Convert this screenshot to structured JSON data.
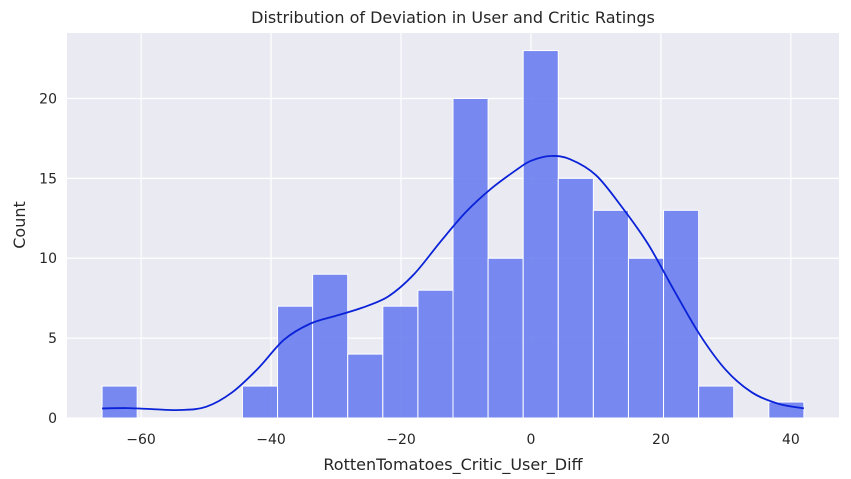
{
  "chart_data": {
    "type": "bar",
    "title": "Distribution of Deviation in User and Critic Ratings",
    "xlabel": "RottenTomatoes_Critic_User_Diff",
    "ylabel": "Count",
    "xlim": [
      -71.4,
      47.4
    ],
    "ylim": [
      0,
      24.1
    ],
    "xticks": [
      -60,
      -40,
      -20,
      0,
      20,
      40
    ],
    "yticks": [
      0,
      5,
      10,
      15,
      20
    ],
    "grid": true,
    "bar_color": "#6a7df0",
    "kde_color": "#0a22d8",
    "bins": {
      "edges": [
        -66,
        -60.6,
        -55.2,
        -49.8,
        -44.4,
        -39,
        -33.6,
        -28.2,
        -22.8,
        -17.4,
        -12,
        -6.6,
        -1.2,
        4.2,
        9.6,
        15,
        20.4,
        25.8,
        31.2,
        36.6,
        42
      ],
      "counts": [
        2,
        0,
        0,
        0,
        2,
        7,
        9,
        4,
        7,
        8,
        20,
        10,
        23,
        15,
        13,
        10,
        13,
        2,
        0,
        1
      ]
    },
    "kde": {
      "x": [
        -66,
        -62,
        -58,
        -54,
        -50,
        -46,
        -42,
        -38,
        -34,
        -30,
        -26,
        -22,
        -18,
        -14,
        -10,
        -6,
        -2,
        0,
        3,
        6,
        10,
        14,
        18,
        22,
        26,
        30,
        34,
        38,
        42
      ],
      "y": [
        0.6,
        0.62,
        0.55,
        0.5,
        0.7,
        1.6,
        3.1,
        4.9,
        5.9,
        6.4,
        6.9,
        7.6,
        9.0,
        11.0,
        12.9,
        14.4,
        15.6,
        16.1,
        16.4,
        16.2,
        15.2,
        13.2,
        10.9,
        8.0,
        5.2,
        3.0,
        1.6,
        0.9,
        0.6
      ]
    }
  }
}
